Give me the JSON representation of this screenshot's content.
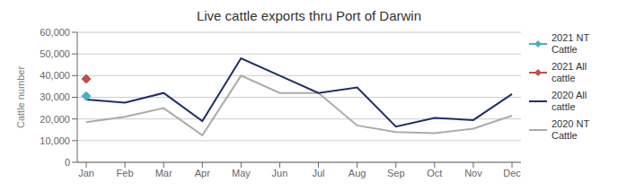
{
  "chart_data": {
    "type": "line",
    "title": "Live cattle exports thru Port of Darwin",
    "ylabel": "Cattle number",
    "categories": [
      "Jan",
      "Feb",
      "Mar",
      "Apr",
      "May",
      "Jun",
      "Jul",
      "Aug",
      "Sep",
      "Oct",
      "Nov",
      "Dec"
    ],
    "series": [
      {
        "name": "2021 NT\nCattle",
        "color": "#4BACC6",
        "marker": "diamond",
        "values": [
          30500,
          null,
          null,
          null,
          null,
          null,
          null,
          null,
          null,
          null,
          null,
          null
        ]
      },
      {
        "name": "2021 All\ncattle",
        "color": "#C0504D",
        "marker": "diamond",
        "values": [
          38500,
          null,
          null,
          null,
          null,
          null,
          null,
          null,
          null,
          null,
          null,
          null
        ]
      },
      {
        "name": "2020 All\ncattle",
        "color": "#1F2D6B",
        "marker": "none",
        "values": [
          29000,
          27500,
          32000,
          19000,
          48000,
          40000,
          32000,
          34500,
          16500,
          20500,
          19500,
          31500
        ]
      },
      {
        "name": "2020 NT\nCattle",
        "color": "#ABABAB",
        "marker": "none",
        "values": [
          18500,
          21000,
          25000,
          12500,
          40000,
          32000,
          32000,
          17000,
          14000,
          13500,
          15500,
          21500
        ]
      }
    ],
    "ylim": [
      0,
      60000
    ],
    "yticks": [
      0,
      {
        "value": 10000,
        "label": "10,000"
      },
      {
        "value": 20000,
        "label": "20,000"
      },
      {
        "value": 30000,
        "label": "30,000"
      },
      {
        "value": 40000,
        "label": "40,000"
      },
      {
        "value": 50000,
        "label": "50,000"
      },
      {
        "value": 60000,
        "label": "60,000"
      }
    ],
    "grid": true
  }
}
